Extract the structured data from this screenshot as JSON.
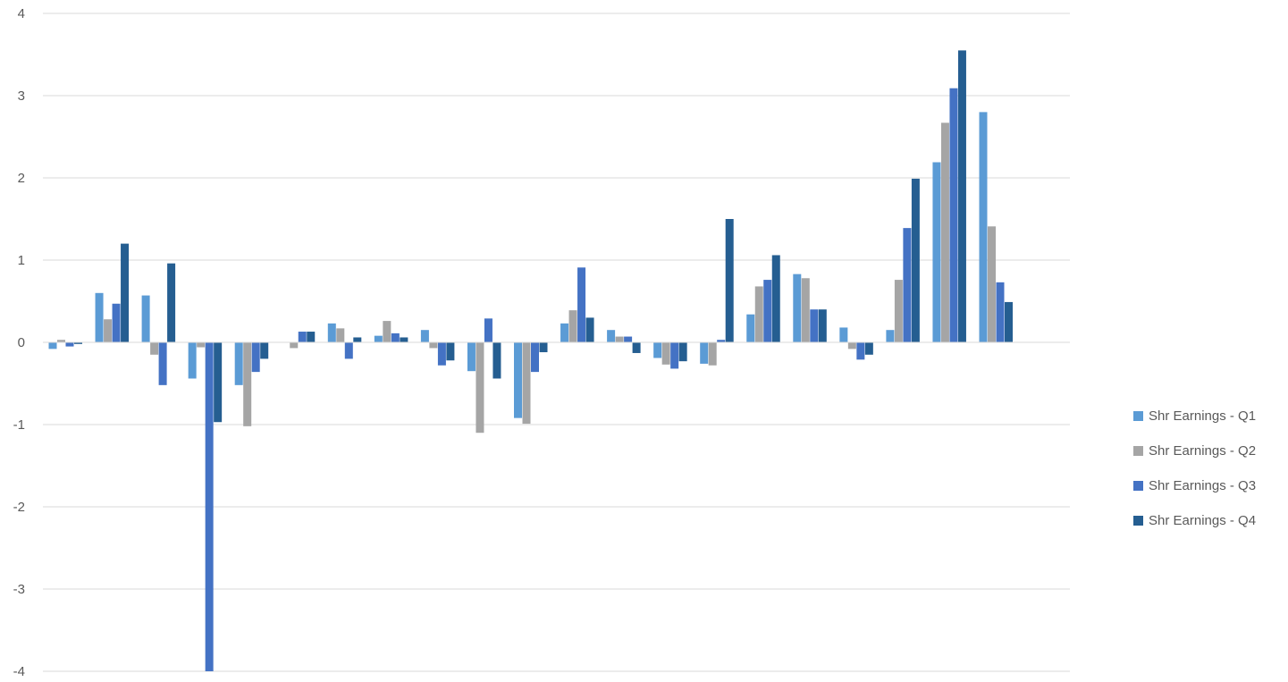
{
  "chart_data": {
    "type": "bar",
    "title": "",
    "xlabel": "",
    "ylabel": "",
    "ylim": [
      -4,
      4
    ],
    "yticks": [
      4,
      3,
      2,
      1,
      0,
      -1,
      -2,
      -3,
      -4
    ],
    "grid": true,
    "legend_position": "right",
    "categories_count": 21,
    "series": [
      {
        "name": "Shr Earnings - Q1",
        "color": "#5B9BD5",
        "values": [
          -0.08,
          0.6,
          0.57,
          -0.44,
          -0.52,
          0.0,
          0.23,
          0.08,
          0.15,
          -0.35,
          -0.92,
          0.23,
          0.15,
          -0.19,
          -0.26,
          0.34,
          0.83,
          0.18,
          0.15,
          2.19,
          2.8
        ]
      },
      {
        "name": "Shr Earnings - Q2",
        "color": "#A5A5A5",
        "values": [
          0.03,
          0.28,
          -0.15,
          -0.06,
          -1.02,
          -0.07,
          0.17,
          0.26,
          -0.07,
          -1.1,
          -0.99,
          0.39,
          0.07,
          -0.27,
          -0.28,
          0.68,
          0.78,
          -0.08,
          0.76,
          2.67,
          1.41
        ]
      },
      {
        "name": "Shr Earnings - Q3",
        "color": "#4472C4",
        "values": [
          -0.05,
          0.47,
          -0.52,
          -4.0,
          -0.36,
          0.13,
          -0.2,
          0.11,
          -0.28,
          0.29,
          -0.36,
          0.91,
          0.07,
          -0.32,
          0.03,
          0.76,
          0.4,
          -0.21,
          1.39,
          3.09,
          0.73
        ]
      },
      {
        "name": "Shr Earnings - Q4",
        "color": "#255E91",
        "values": [
          -0.02,
          1.2,
          0.96,
          -0.97,
          -0.2,
          0.13,
          0.06,
          0.06,
          -0.22,
          -0.44,
          -0.12,
          0.3,
          -0.13,
          -0.23,
          1.5,
          1.06,
          0.4,
          -0.15,
          1.99,
          3.55,
          0.49
        ]
      }
    ]
  }
}
